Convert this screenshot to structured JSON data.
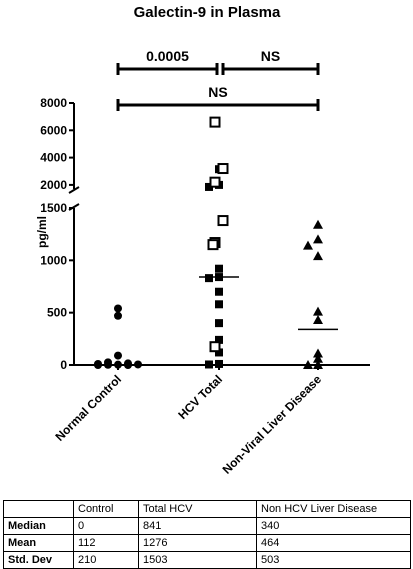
{
  "chart_data": {
    "type": "scatter",
    "title": "Galectin-9 in Plasma",
    "ylabel": "pg/ml",
    "xlabel": "",
    "categories": [
      "Normal Control",
      "HCV Total",
      "Non-Viral Liver Disease"
    ],
    "y_axis": {
      "broken": true,
      "lower_segment": {
        "range": [
          0,
          1500
        ],
        "ticks": [
          0,
          500,
          1000,
          1500
        ]
      },
      "upper_segment": {
        "range": [
          1700,
          8000
        ],
        "ticks": [
          2000,
          4000,
          6000,
          8000
        ]
      }
    },
    "grid": false,
    "series": [
      {
        "category": "Normal Control",
        "marker": "filled-circle",
        "values": [
          540,
          470,
          90,
          25,
          15,
          10,
          5,
          3,
          2,
          0,
          0
        ]
      },
      {
        "category": "HCV Total",
        "marker": "filled-square",
        "values": [
          3150,
          2000,
          1850,
          920,
          840,
          830,
          700,
          580,
          400,
          240,
          120,
          10,
          5
        ]
      },
      {
        "category": "HCV Total",
        "marker": "open-square",
        "values": [
          6600,
          3200,
          2200,
          1380,
          1170,
          1150,
          175
        ]
      },
      {
        "category": "Non-Viral Liver Disease",
        "marker": "filled-triangle",
        "values": [
          1340,
          1200,
          1140,
          1040,
          510,
          430,
          110,
          60,
          0,
          0
        ]
      }
    ],
    "medians": [
      {
        "category": "Normal Control",
        "value": 0
      },
      {
        "category": "HCV Total",
        "value": 841
      },
      {
        "category": "Non-Viral Liver Disease",
        "value": 340
      }
    ],
    "comparisons": [
      {
        "from": "Normal Control",
        "to": "HCV Total",
        "label": "0.0005"
      },
      {
        "from": "HCV Total",
        "to": "Non-Viral Liver Disease",
        "label": "NS"
      },
      {
        "from": "Normal Control",
        "to": "Non-Viral Liver Disease",
        "label": "NS"
      }
    ]
  },
  "table": {
    "headers": [
      "",
      "Control",
      "Total HCV",
      "Non HCV Liver Disease"
    ],
    "rows": [
      {
        "label": "Median",
        "values": [
          "0",
          "841",
          "340"
        ]
      },
      {
        "label": "Mean",
        "values": [
          "112",
          "1276",
          "464"
        ]
      },
      {
        "label": "Std. Dev",
        "values": [
          "210",
          "1503",
          "503"
        ]
      }
    ]
  }
}
